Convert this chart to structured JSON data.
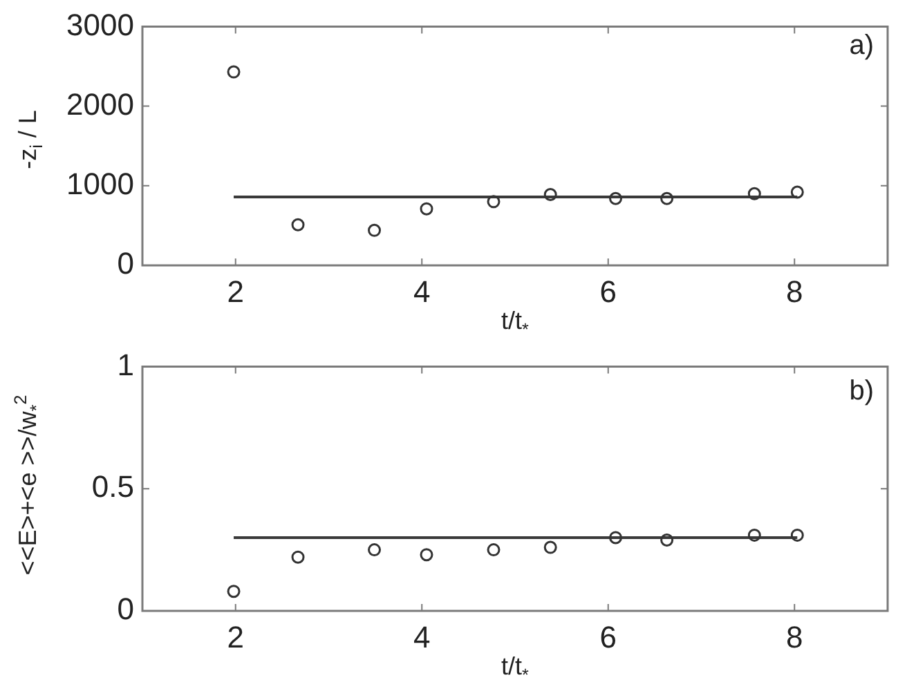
{
  "chart_data": [
    {
      "type": "scatter",
      "xlabel": "t/t$_{*}$",
      "ylabel": "-z$_{i}$ / L",
      "annotations": [
        "a)"
      ],
      "xlim": [
        1,
        9
      ],
      "ylim": [
        0,
        3000
      ],
      "xticks": [
        2,
        4,
        6,
        8
      ],
      "yticks": [
        0,
        1000,
        2000,
        3000
      ],
      "grid": false,
      "legend": false,
      "series": [
        {
          "type": "scatter",
          "color": "#333333",
          "marker": "circle",
          "x": [
            1.98,
            2.67,
            3.49,
            4.05,
            4.77,
            5.38,
            6.08,
            6.63,
            7.57,
            8.03
          ],
          "values": [
            2430,
            510,
            440,
            710,
            800,
            890,
            840,
            840,
            900,
            920
          ]
        },
        {
          "type": "line",
          "color": "#3a3a3a",
          "marker": "none",
          "line_style": "solid",
          "x": [
            1.98,
            8.03
          ],
          "values": [
            860,
            860
          ]
        }
      ]
    },
    {
      "type": "scatter",
      "xlabel": "t/t$_{*}$",
      "ylabel": "<<E>+<e >>/w$_{*}$$^{2}$",
      "annotations": [
        "b)"
      ],
      "xlim": [
        1,
        9
      ],
      "ylim": [
        0,
        1
      ],
      "xticks": [
        2,
        4,
        6,
        8
      ],
      "yticks": [
        0,
        0.5,
        1
      ],
      "grid": false,
      "legend": false,
      "series": [
        {
          "type": "scatter",
          "color": "#333333",
          "marker": "circle",
          "x": [
            1.98,
            2.67,
            3.49,
            4.05,
            4.77,
            5.38,
            6.08,
            6.63,
            7.57,
            8.03
          ],
          "values": [
            0.08,
            0.22,
            0.25,
            0.23,
            0.25,
            0.26,
            0.3,
            0.29,
            0.31,
            0.31
          ]
        },
        {
          "type": "line",
          "color": "#3a3a3a",
          "marker": "none",
          "line_style": "solid",
          "x": [
            1.98,
            8.03
          ],
          "values": [
            0.3,
            0.3
          ]
        }
      ]
    }
  ]
}
